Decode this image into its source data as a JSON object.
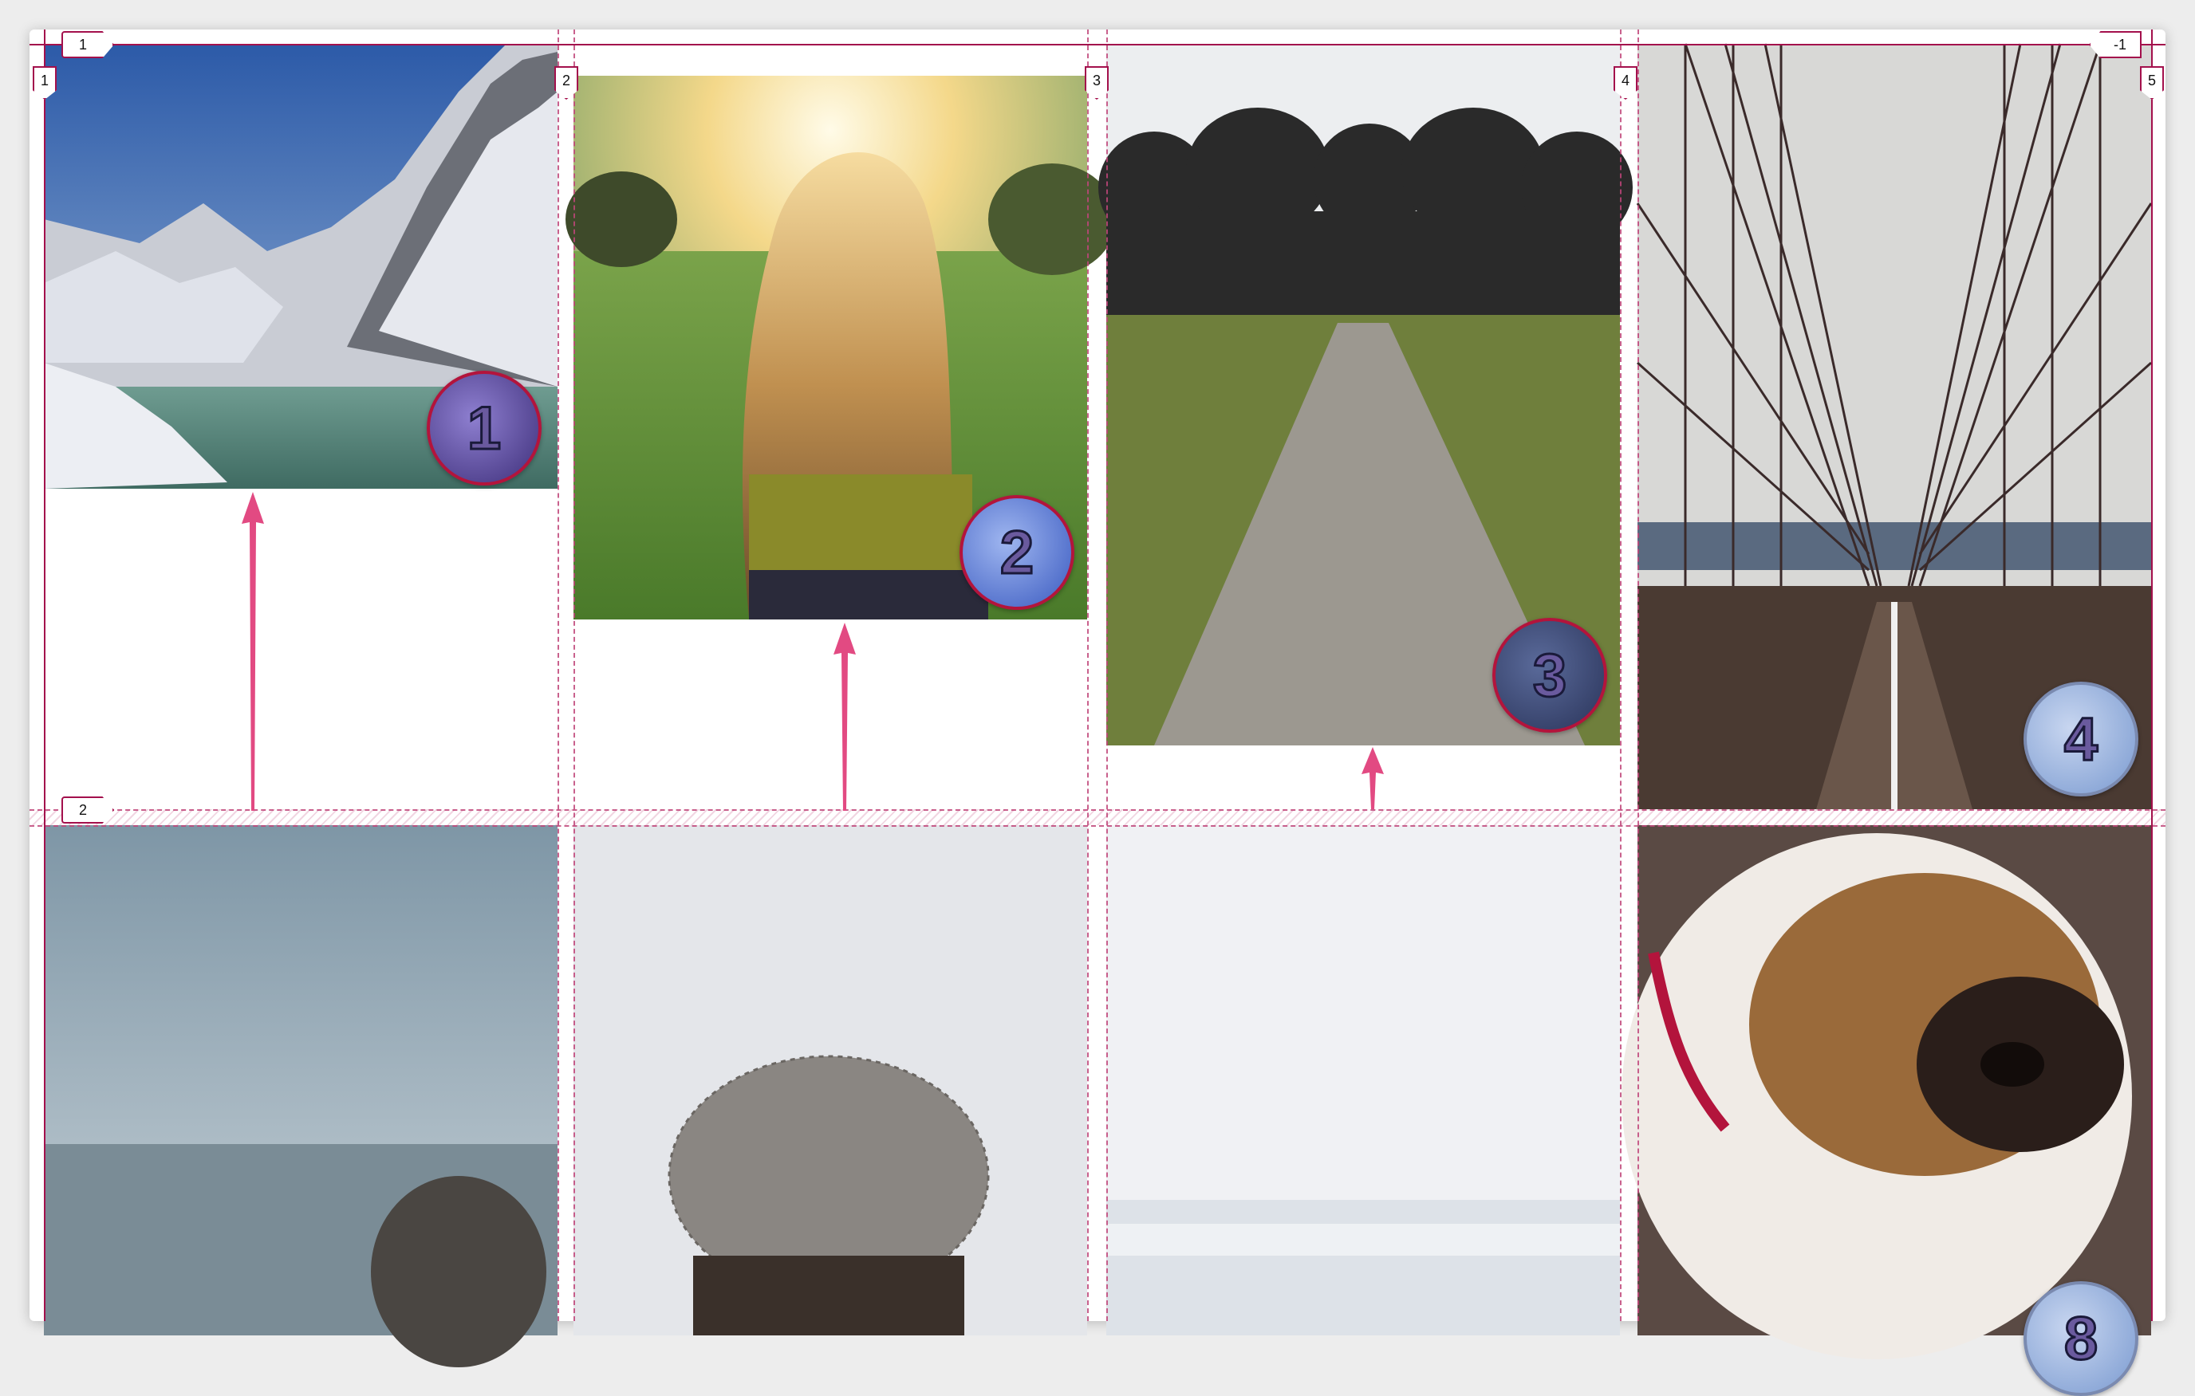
{
  "grid": {
    "column_line_labels": [
      "1",
      "2",
      "3",
      "4",
      "5"
    ],
    "row_line_labels": [
      "1",
      "2"
    ],
    "last_column_label": "-1"
  },
  "items": [
    {
      "name": "mountain-lake-photo",
      "badge": "1"
    },
    {
      "name": "woman-sunset-photo",
      "badge": "2"
    },
    {
      "name": "tree-path-photo",
      "badge": "3"
    },
    {
      "name": "bridge-photo",
      "badge": "4"
    },
    {
      "name": "lake-beanie-photo",
      "badge": ""
    },
    {
      "name": "knit-beanie-photo",
      "badge": ""
    },
    {
      "name": "beach-photo",
      "badge": ""
    },
    {
      "name": "bulldog-photo",
      "badge": "8"
    }
  ],
  "colors": {
    "grid_line": "#a3104c",
    "arrow": "#e24a82",
    "badge_border": "#b3143c"
  }
}
